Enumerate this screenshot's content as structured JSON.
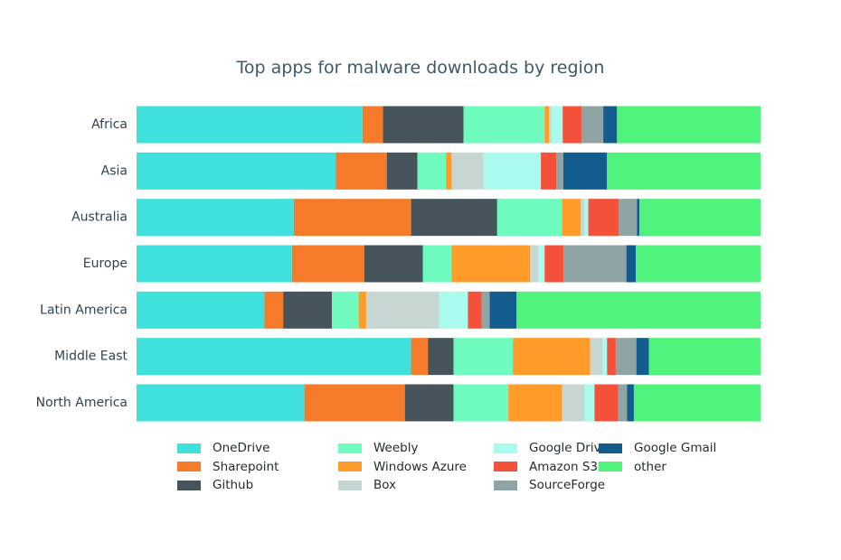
{
  "chart_data": {
    "type": "bar",
    "orientation": "horizontal",
    "stacked": true,
    "normalized": true,
    "title": "Top apps for malware downloads by region",
    "categories": [
      "Africa",
      "Asia",
      "Australia",
      "Europe",
      "Latin America",
      "Middle East",
      "North America"
    ],
    "xlim": [
      0,
      100
    ],
    "grid": false,
    "legend_position": "bottom",
    "series": [
      {
        "name": "OneDrive",
        "color": "#40e0dc",
        "values": [
          36.2,
          31.9,
          25.2,
          24.9,
          20.5,
          44.0,
          26.9
        ]
      },
      {
        "name": "Sharepoint",
        "color": "#f57a2a",
        "values": [
          3.3,
          8.2,
          18.8,
          11.6,
          3.0,
          2.7,
          16.1
        ]
      },
      {
        "name": "Github",
        "color": "#46555c",
        "values": [
          12.9,
          4.9,
          13.8,
          9.4,
          7.8,
          4.1,
          7.8
        ]
      },
      {
        "name": "Weebly",
        "color": "#6ffbbd",
        "values": [
          13.0,
          4.6,
          10.4,
          4.6,
          4.3,
          9.5,
          8.8
        ]
      },
      {
        "name": "Windows Azure",
        "color": "#ff9b28",
        "values": [
          0.7,
          0.9,
          3.0,
          12.6,
          1.2,
          12.4,
          8.6
        ]
      },
      {
        "name": "Box",
        "color": "#c6d6d2",
        "values": [
          0.4,
          5.1,
          0.6,
          1.3,
          11.7,
          2.0,
          3.6
        ]
      },
      {
        "name": "Google Drive",
        "color": "#a9fbee",
        "values": [
          1.8,
          9.2,
          0.6,
          1.0,
          4.6,
          0.7,
          1.6
        ]
      },
      {
        "name": "Amazon S3",
        "color": "#f4513a",
        "values": [
          3.0,
          2.5,
          4.9,
          3.0,
          2.2,
          1.4,
          3.8
        ]
      },
      {
        "name": "SourceForge",
        "color": "#8fa4a4",
        "values": [
          3.5,
          1.1,
          2.9,
          10.1,
          1.3,
          3.3,
          1.4
        ]
      },
      {
        "name": "Google Gmail",
        "color": "#135c8e",
        "values": [
          2.2,
          7.0,
          0.4,
          1.5,
          4.3,
          2.0,
          1.1
        ]
      },
      {
        "name": "other",
        "color": "#4ff27b",
        "values": [
          23.0,
          24.6,
          19.4,
          20.0,
          39.1,
          17.9,
          20.3
        ]
      }
    ]
  }
}
